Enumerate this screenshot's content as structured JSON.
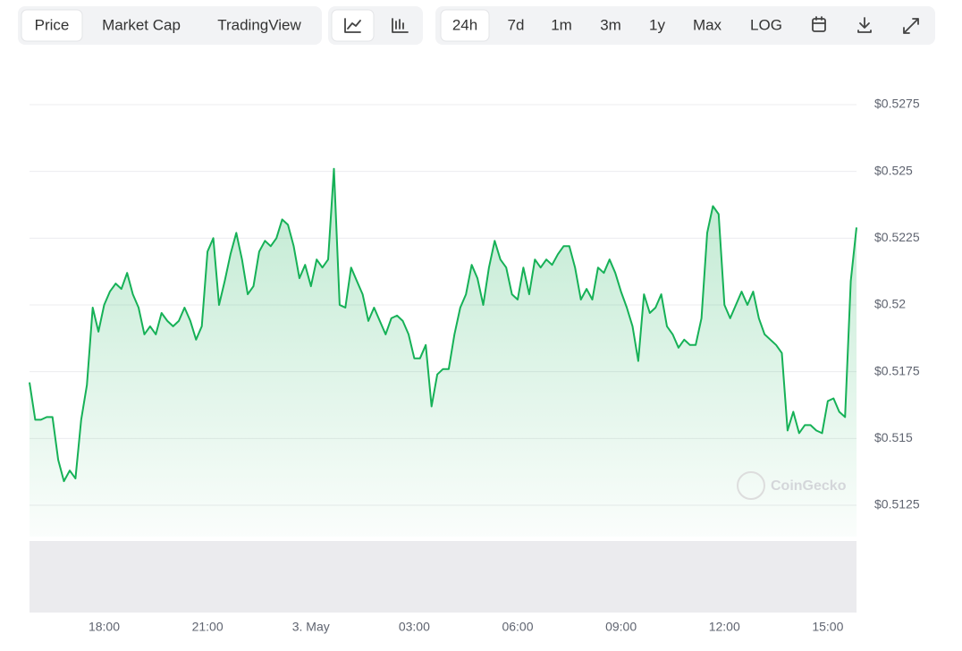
{
  "toolbar": {
    "views": [
      "Price",
      "Market Cap",
      "TradingView"
    ],
    "ranges": [
      "24h",
      "7d",
      "1m",
      "3m",
      "1y",
      "Max",
      "LOG"
    ]
  },
  "watermark": "CoinGecko",
  "chart_data": {
    "type": "line",
    "color": "#16b157",
    "values": [
      0.5171,
      0.5157,
      0.5157,
      0.5158,
      0.5158,
      0.5142,
      0.5134,
      0.5138,
      0.5135,
      0.5157,
      0.517,
      0.5199,
      0.519,
      0.52,
      0.5205,
      0.5208,
      0.5206,
      0.5212,
      0.5204,
      0.5199,
      0.5189,
      0.5192,
      0.5189,
      0.5197,
      0.5194,
      0.5192,
      0.5194,
      0.5199,
      0.5194,
      0.5187,
      0.5192,
      0.522,
      0.5225,
      0.52,
      0.5209,
      0.5219,
      0.5227,
      0.5217,
      0.5204,
      0.5207,
      0.522,
      0.5224,
      0.5222,
      0.5225,
      0.5232,
      0.523,
      0.5222,
      0.521,
      0.5215,
      0.5207,
      0.5217,
      0.5214,
      0.5217,
      0.5251,
      0.52,
      0.5199,
      0.5214,
      0.5209,
      0.5204,
      0.5194,
      0.5199,
      0.5194,
      0.5189,
      0.5195,
      0.5196,
      0.5194,
      0.5189,
      0.518,
      0.518,
      0.5185,
      0.5162,
      0.5174,
      0.5176,
      0.5176,
      0.5189,
      0.5199,
      0.5204,
      0.5215,
      0.521,
      0.52,
      0.5214,
      0.5224,
      0.5217,
      0.5214,
      0.5204,
      0.5202,
      0.5214,
      0.5204,
      0.5217,
      0.5214,
      0.5217,
      0.5215,
      0.5219,
      0.5222,
      0.5222,
      0.5214,
      0.5202,
      0.5206,
      0.5202,
      0.5214,
      0.5212,
      0.5217,
      0.5212,
      0.5205,
      0.5199,
      0.5192,
      0.5179,
      0.5204,
      0.5197,
      0.5199,
      0.5204,
      0.5192,
      0.5189,
      0.5184,
      0.5187,
      0.5185,
      0.5185,
      0.5195,
      0.5227,
      0.5237,
      0.5234,
      0.52,
      0.5195,
      0.52,
      0.5205,
      0.52,
      0.5205,
      0.5195,
      0.5189,
      0.5187,
      0.5185,
      0.5182,
      0.5153,
      0.516,
      0.5152,
      0.5155,
      0.5155,
      0.5153,
      0.5152,
      0.5164,
      0.5165,
      0.516,
      0.5158,
      0.5209,
      0.5229
    ],
    "ylim": [
      0.5125,
      0.5275
    ],
    "yticks": [
      {
        "value": 0.5125,
        "label": "$0.5125"
      },
      {
        "value": 0.515,
        "label": "$0.515"
      },
      {
        "value": 0.5175,
        "label": "$0.5175"
      },
      {
        "value": 0.52,
        "label": "$0.52"
      },
      {
        "value": 0.5225,
        "label": "$0.5225"
      },
      {
        "value": 0.525,
        "label": "$0.525"
      },
      {
        "value": 0.5275,
        "label": "$0.5275"
      }
    ],
    "xlim": [
      0,
      144
    ],
    "xticks": [
      {
        "value": 13,
        "label": "18:00"
      },
      {
        "value": 31,
        "label": "21:00"
      },
      {
        "value": 49,
        "label": "3. May"
      },
      {
        "value": 67,
        "label": "03:00"
      },
      {
        "value": 85,
        "label": "06:00"
      },
      {
        "value": 103,
        "label": "09:00"
      },
      {
        "value": 121,
        "label": "12:00"
      },
      {
        "value": 139,
        "label": "15:00"
      }
    ],
    "grid": true
  }
}
